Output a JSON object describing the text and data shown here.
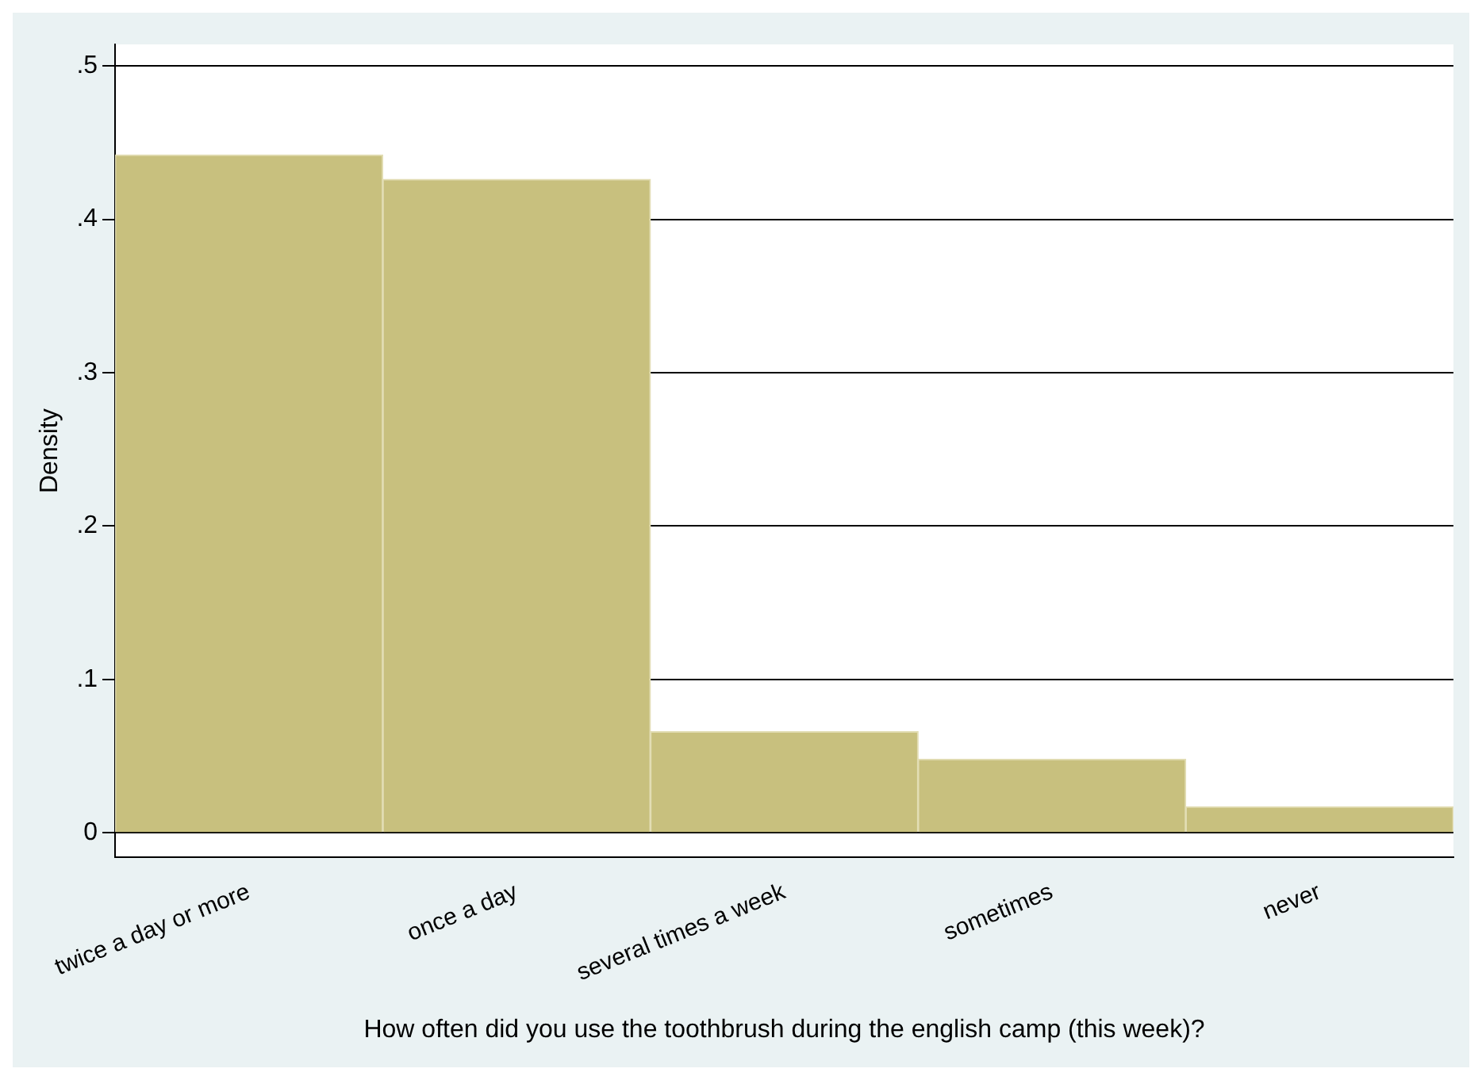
{
  "chart_data": {
    "type": "bar",
    "xlabel": "How often did you use the toothbrush during the english camp (this week)?",
    "ylabel": "Density",
    "categories": [
      "twice a day or more",
      "once a day",
      "several times a week",
      "sometimes",
      "never"
    ],
    "values": [
      0.442,
      0.426,
      0.066,
      0.048,
      0.017
    ],
    "color": "#c8c07e",
    "ylim": [
      -0.016,
      0.514
    ],
    "yticks": [
      {
        "value": 0,
        "label": "0"
      },
      {
        "value": 0.1,
        "label": ".1"
      },
      {
        "value": 0.2,
        "label": ".2"
      },
      {
        "value": 0.3,
        "label": ".3"
      },
      {
        "value": 0.4,
        "label": ".4"
      },
      {
        "value": 0.5,
        "label": ".5"
      }
    ],
    "grid": "y",
    "legend": false
  }
}
